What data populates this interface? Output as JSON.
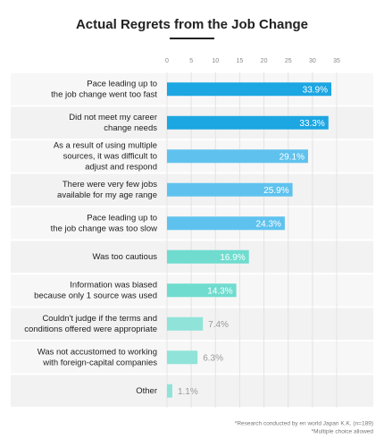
{
  "chart_data": {
    "type": "bar",
    "orientation": "horizontal",
    "title": "Actual Regrets from the Job Change",
    "categories": [
      [
        "Pace leading up to",
        "the job change went too fast"
      ],
      [
        "Did not meet my career",
        "change needs"
      ],
      [
        "As a result of using multiple",
        "sources, it was difficult to",
        "adjust and respond"
      ],
      [
        "There were very few jobs",
        "available for my age range"
      ],
      [
        "Pace leading up to",
        "the job change was too slow"
      ],
      [
        "Was too cautious"
      ],
      [
        "Information was biased",
        "because only 1 source was used"
      ],
      [
        "Couldn't judge if the terms and",
        "conditions offered were appropriate"
      ],
      [
        "Was not accustomed to working",
        "with foreign-capital companies"
      ],
      [
        "Other"
      ]
    ],
    "values": [
      33.9,
      33.3,
      29.1,
      25.9,
      24.3,
      16.9,
      14.3,
      7.4,
      6.3,
      1.1
    ],
    "value_labels": [
      "33.9%",
      "33.3%",
      "29.1%",
      "25.9%",
      "24.3%",
      "16.9%",
      "14.3%",
      "7.4%",
      "6.3%",
      "1.1%"
    ],
    "colors": [
      "#1ca6e2",
      "#1ca6e2",
      "#5fc2ee",
      "#5fc2ee",
      "#5fc2ee",
      "#6fdccf",
      "#6fdccf",
      "#8fe3d9",
      "#8fe3d9",
      "#8fe3d9"
    ],
    "xlim": [
      0,
      35
    ],
    "xticks": [
      0,
      5,
      10,
      15,
      20,
      25,
      30,
      35
    ],
    "grid": true,
    "notes": [
      "*Research conducted by en world Japan K.K. (n=189)",
      "*Multiple choice allowed"
    ]
  }
}
